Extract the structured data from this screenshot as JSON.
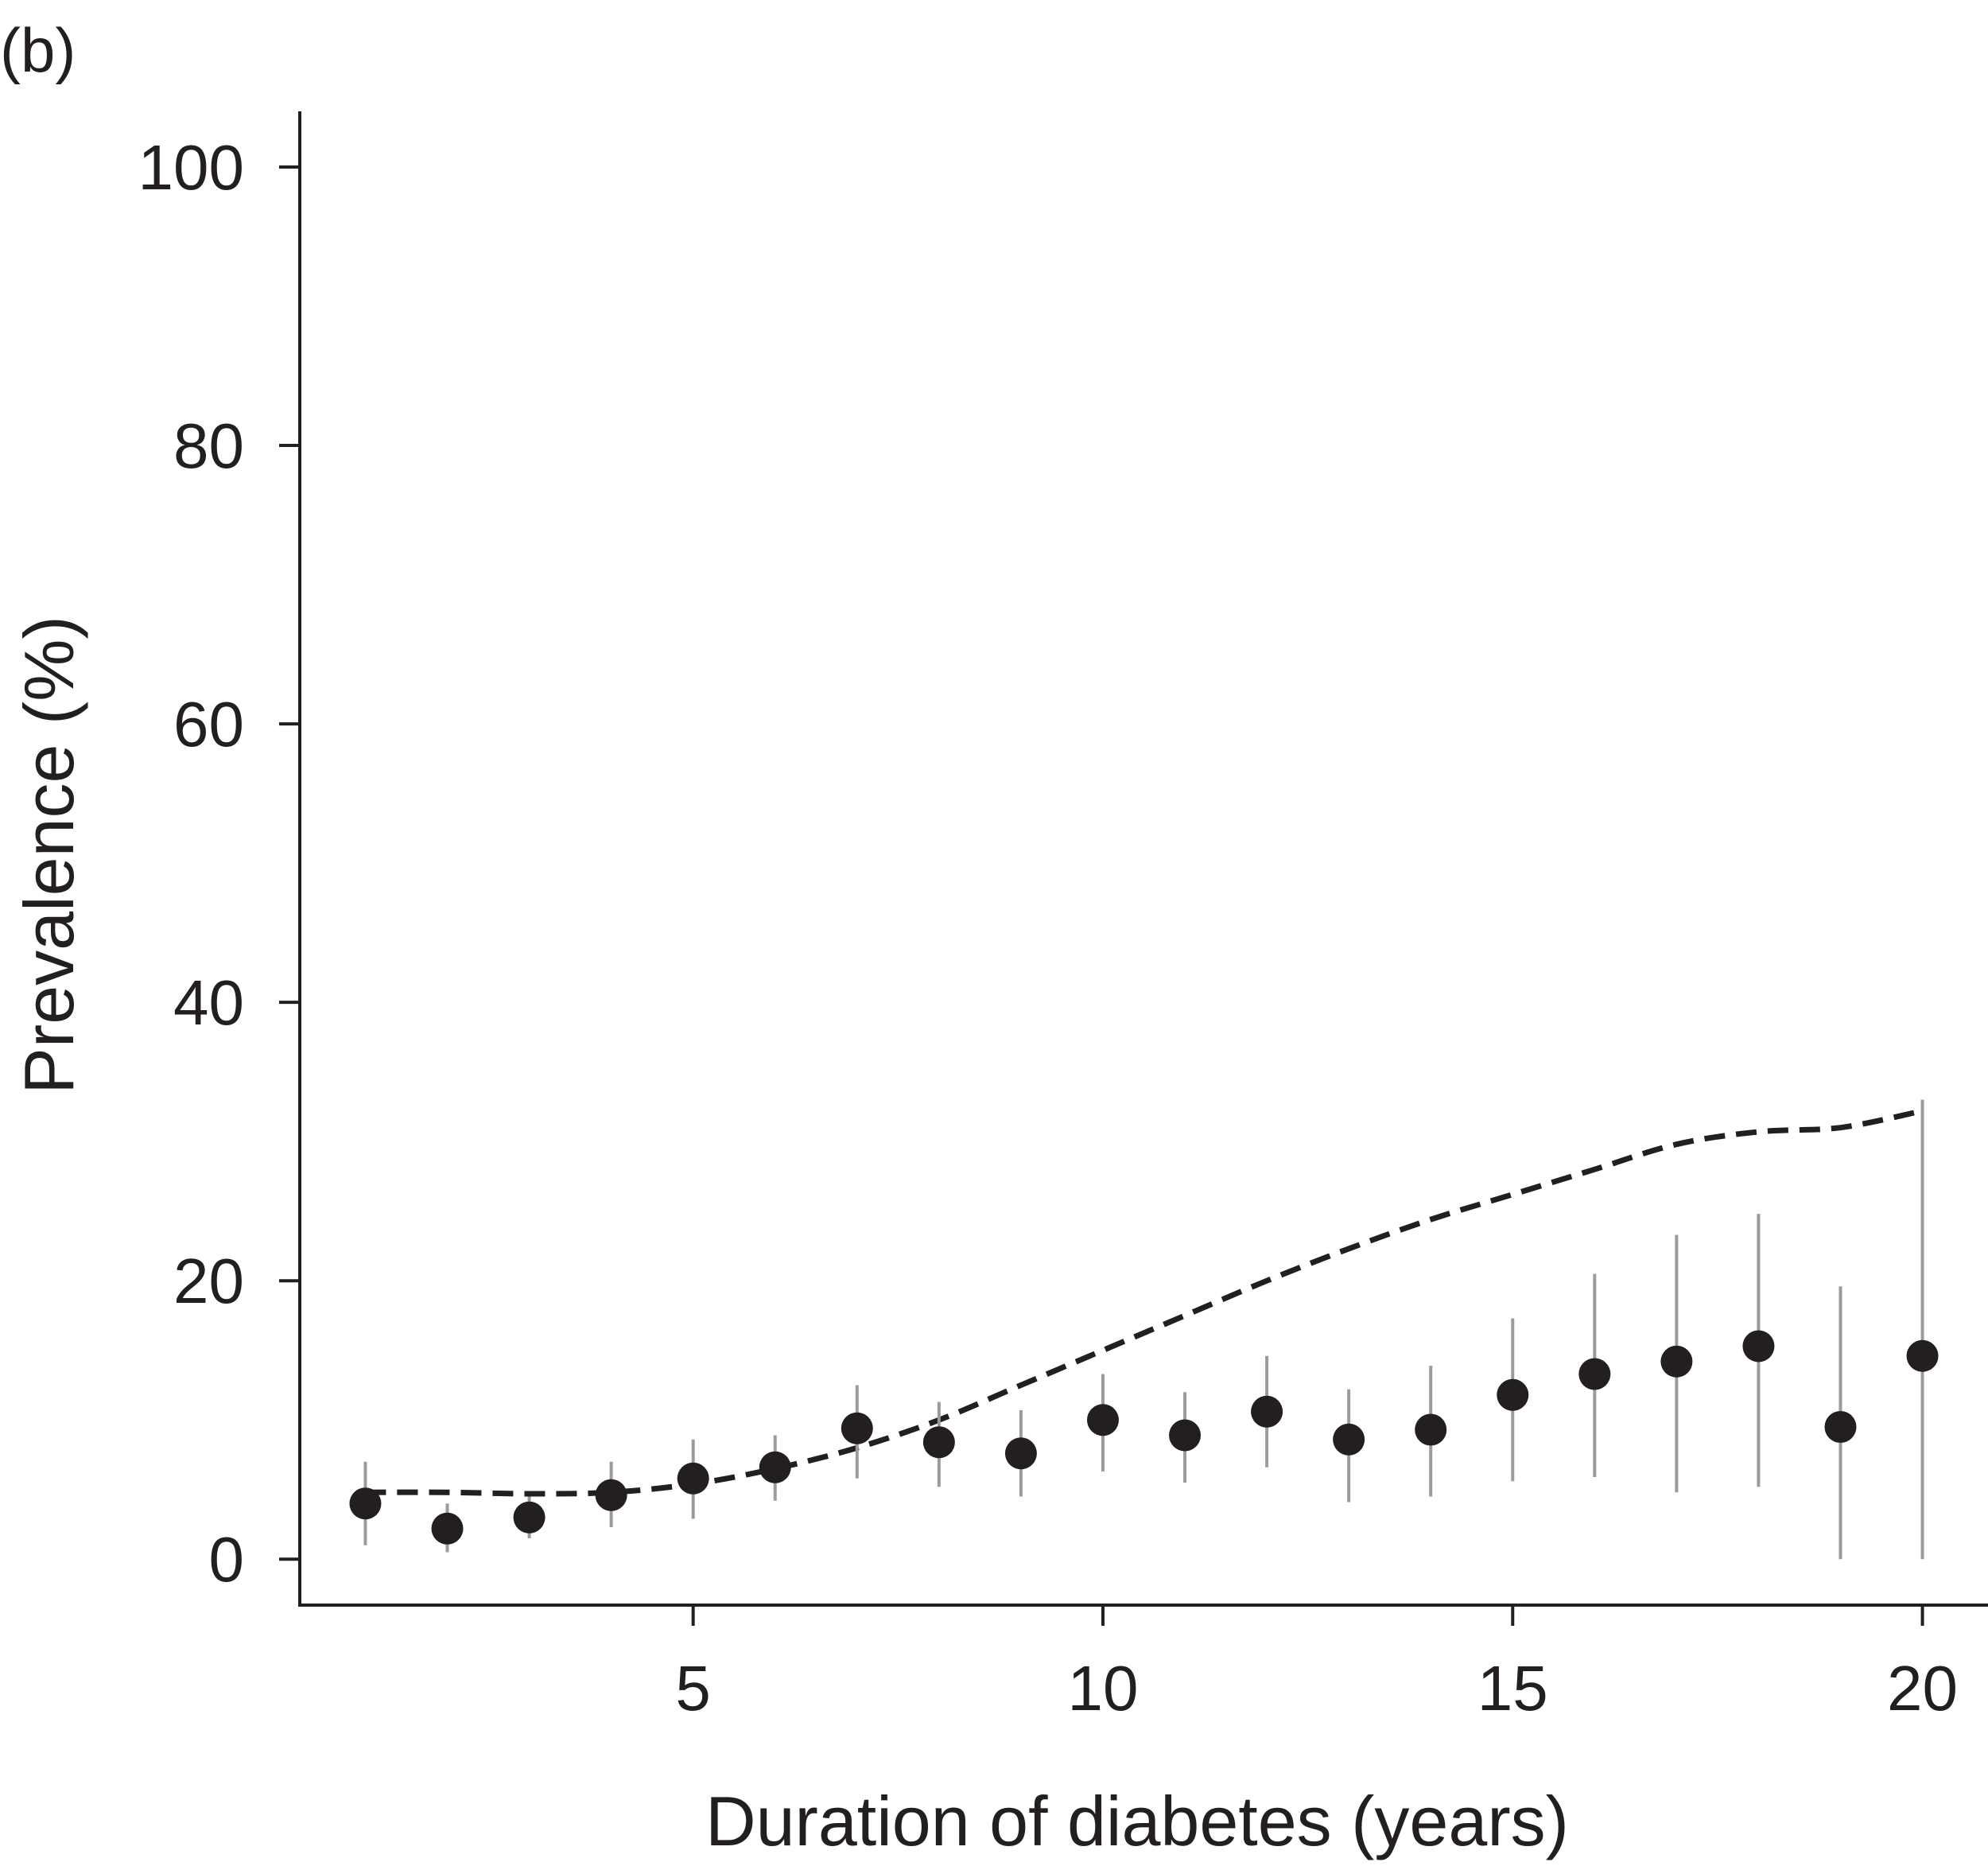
{
  "panel_label": "(b)",
  "chart_data": {
    "type": "scatter",
    "xlabel": "Duration of diabetes (years)",
    "ylabel": "Prevalence (%)",
    "xlim": [
      0.2,
      20.8
    ],
    "ylim": [
      -3.3,
      104
    ],
    "xticks": [
      5,
      10,
      15,
      20
    ],
    "yticks": [
      0,
      20,
      40,
      60,
      80,
      100
    ],
    "grid": false,
    "legend": "none",
    "colors": {
      "points": "#231f20",
      "error_bars": "#9b9b9b",
      "curve": "#231f20",
      "axes": "#231f20"
    },
    "series": [
      {
        "kind": "points_with_error_bars",
        "x": [
          1,
          2,
          3,
          4,
          5,
          6,
          7,
          8,
          9,
          10,
          11,
          12,
          13,
          14,
          15,
          16,
          17,
          18,
          19,
          20
        ],
        "y": [
          4.0,
          2.2,
          3.0,
          4.6,
          5.8,
          6.6,
          9.4,
          8.4,
          7.6,
          10.0,
          8.9,
          10.6,
          8.6,
          9.3,
          11.8,
          13.3,
          14.2,
          15.3,
          9.5,
          14.6
        ],
        "lower": [
          1.0,
          0.5,
          1.5,
          2.3,
          2.9,
          4.2,
          5.8,
          5.2,
          4.5,
          6.3,
          5.5,
          6.6,
          4.1,
          4.5,
          5.6,
          5.9,
          4.8,
          5.2,
          0.0,
          0.0
        ],
        "upper": [
          7.0,
          4.0,
          4.5,
          7.0,
          8.6,
          8.9,
          12.5,
          11.3,
          10.7,
          13.3,
          12.0,
          14.6,
          12.2,
          13.9,
          17.3,
          20.5,
          23.3,
          24.8,
          19.6,
          33.0
        ]
      },
      {
        "kind": "dashed_line",
        "x": [
          1,
          2,
          3,
          4,
          5,
          6,
          7,
          8,
          9,
          10,
          11,
          12,
          13,
          14,
          15,
          16,
          17,
          18,
          19,
          20
        ],
        "y": [
          4.8,
          4.8,
          4.7,
          4.8,
          5.4,
          6.5,
          8.0,
          10.0,
          12.5,
          15.0,
          17.5,
          20.0,
          22.3,
          24.4,
          26.2,
          28.0,
          29.8,
          30.7,
          31.0,
          32.2
        ]
      }
    ]
  }
}
